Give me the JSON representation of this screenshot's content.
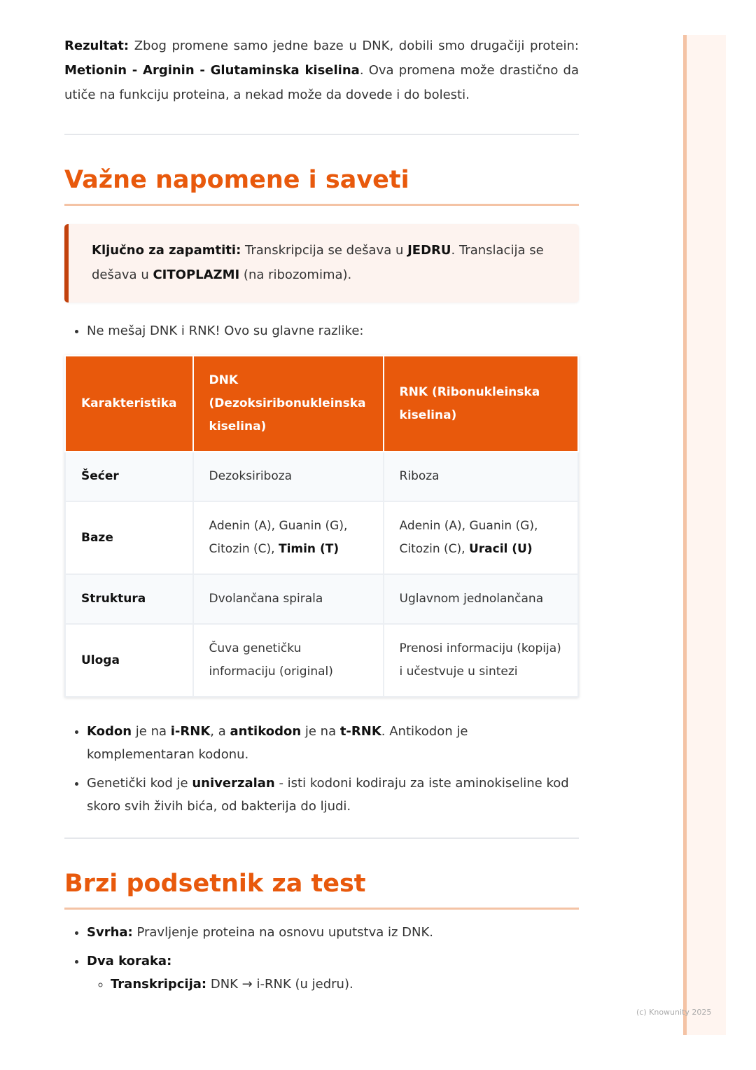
{
  "result": {
    "label": "Rezultat:",
    "text1": " Zbog promene samo jedne baze u DNK, dobili smo drugačiji protein: ",
    "bold": "Metionin - Arginin - Glutaminska kiselina",
    "text2": ". Ova promena može drastično da utiče na funkciju proteina, a nekad može da dovede i do bolesti."
  },
  "section1": {
    "title": "Važne napomene i saveti"
  },
  "note": {
    "label": "Ključno za zapamtiti:",
    "t1": " Transkripcija se dešava u ",
    "b1": "JEDRU",
    "t2": ". Translacija se dešava u ",
    "b2": "CITOPLAZMI",
    "t3": " (na ribozomima)."
  },
  "bullet_intro": "Ne mešaj DNK i RNK! Ovo su glavne razlike:",
  "table": {
    "headers": [
      "Karakteristika",
      "DNK (Dezoksiribonukleinska kiselina)",
      "RNK (Ribonukleinska kiselina)"
    ],
    "rows": [
      {
        "k": "Šećer",
        "dnk": "Dezoksiriboza",
        "rnk": "Riboza"
      },
      {
        "k": "Baze",
        "dnk": "Adenin (A), Guanin (G), Citozin (C), ",
        "dnk_b": "Timin (T)",
        "rnk": "Adenin (A), Guanin (G), Citozin (C), ",
        "rnk_b": "Uracil (U)"
      },
      {
        "k": "Struktura",
        "dnk": "Dvolančana spirala",
        "rnk": "Uglavnom jednolančana"
      },
      {
        "k": "Uloga",
        "dnk": "Čuva genetičku informaciju (original)",
        "rnk": "Prenosi informaciju (kopija) i učestvuje u sintezi"
      }
    ]
  },
  "bullets": [
    {
      "b1": "Kodon",
      "t1": " je na ",
      "b2": "i-RNK",
      "t2": ", a ",
      "b3": "antikodon",
      "t3": " je na ",
      "b4": "t-RNK",
      "t4": ". Antikodon je komplementaran kodonu."
    },
    {
      "t1": "Genetički kod je ",
      "b1": "univerzalan",
      "t2": " - isti kodoni kodiraju za iste aminokiseline kod skoro svih živih bića, od bakterija do ljudi."
    }
  ],
  "section2": {
    "title": "Brzi podsetnik za test"
  },
  "summary": [
    {
      "b": "Svrha:",
      "t": " Pravljenje proteina na osnovu uputstva iz DNK."
    },
    {
      "b": "Dva koraka:"
    },
    {
      "b": "Transkripcija:",
      "t": " DNK → i-RNK (u jedru)."
    }
  ],
  "footer": "(c) Knowunity 2025"
}
